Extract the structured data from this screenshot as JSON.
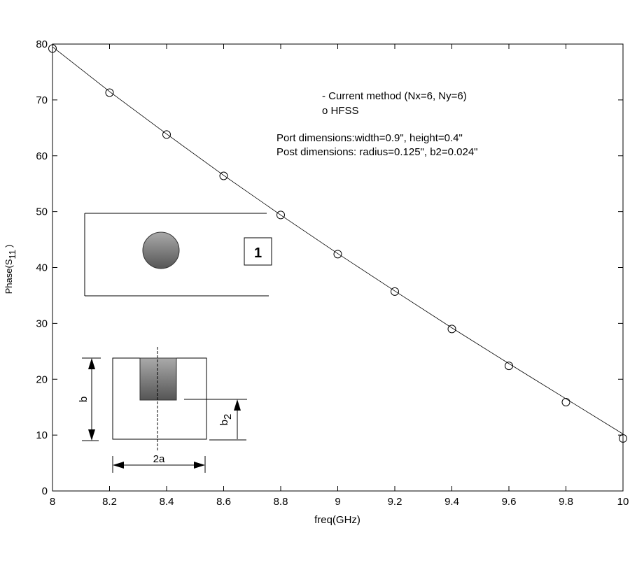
{
  "chart_data": {
    "type": "line",
    "title": "",
    "xlabel": "freq(GHz)",
    "ylabel_main": "Phase(S",
    "ylabel_sub": "11",
    "ylabel_close": ")",
    "xlim": [
      8,
      10
    ],
    "ylim": [
      0,
      80
    ],
    "grid": false,
    "x_ticks": [
      8,
      8.2,
      8.4,
      8.6,
      8.8,
      9,
      9.2,
      9.4,
      9.6,
      9.8,
      10
    ],
    "x_tick_labels": [
      "8",
      "8.2",
      "8.4",
      "8.6",
      "8.8",
      "9",
      "9.2",
      "9.4",
      "9.6",
      "9.8",
      "10"
    ],
    "y_ticks": [
      0,
      10,
      20,
      30,
      40,
      50,
      60,
      70,
      80
    ],
    "y_tick_labels": [
      "0",
      "10",
      "20",
      "30",
      "40",
      "50",
      "60",
      "70",
      "80"
    ],
    "x": [
      8,
      8.2,
      8.4,
      8.6,
      8.8,
      9,
      9.2,
      9.4,
      9.6,
      9.8,
      10
    ],
    "series": [
      {
        "name": "Current method (Nx=6, Ny=6)",
        "style": "line",
        "values": [
          79.5,
          71.5,
          63.9,
          56.5,
          49.4,
          42.5,
          35.8,
          29.2,
          22.8,
          16.5,
          10.2
        ]
      },
      {
        "name": "HFSS",
        "style": "circle",
        "values": [
          79.2,
          71.3,
          63.8,
          56.4,
          49.4,
          42.4,
          35.7,
          29.0,
          22.4,
          15.9,
          9.4
        ]
      }
    ],
    "legend": [
      "- Current method (Nx=6, Ny=6)",
      "o HFSS"
    ],
    "legend_placement": "top-right",
    "annotations": [
      "Port dimensions:width=0.9\", height=0.4\"",
      "Post dimensions: radius=0.125\", b2=0.024\""
    ],
    "inset_labels": {
      "port": "1",
      "b": "b",
      "b2_main": "b",
      "b2_sub": "2",
      "width": "2a"
    }
  }
}
